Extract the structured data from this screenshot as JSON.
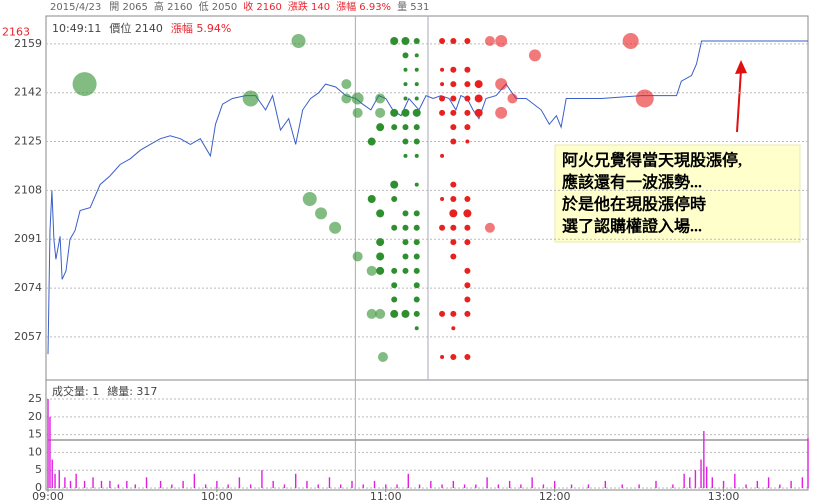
{
  "header": {
    "items": [
      "2015/4/23",
      "開 2065",
      "高 2160",
      "低 2050",
      "收 2160",
      "漲跌 140",
      "漲幅 6.93%",
      "量 531"
    ]
  },
  "annotation": {
    "lines": [
      "阿火兄覺得當天現股漲停,",
      "應該還有一波漲勢...",
      "於是他在現股漲停時",
      "選了認購權證入場..."
    ]
  },
  "chart_data": [
    {
      "type": "line",
      "info": [
        "10:49:11",
        "價位 2140",
        "漲幅 5.94%"
      ],
      "ymax_label": 2163,
      "xlim": [
        0,
        270
      ],
      "ylim": [
        2042,
        2168.7
      ],
      "yticks": [
        2159,
        2142,
        2125,
        2108,
        2091,
        2074,
        2057
      ],
      "grid": true,
      "markers_x": [
        109.2,
        135
      ],
      "series": [
        {
          "type": "line",
          "color": "#3a5fc8",
          "x": [
            0,
            0.7,
            1.4,
            2.1,
            2.8,
            4.3,
            5,
            6.4,
            7.8,
            9.6,
            11.4,
            15,
            18.5,
            22,
            25.6,
            29.2,
            32.8,
            36.3,
            39.9,
            43.4,
            47,
            50.6,
            54.1,
            57.7,
            59.5,
            62,
            65.5,
            70.2,
            73.7,
            77.3,
            79.8,
            82.6,
            85.5,
            88,
            90.5,
            93.3,
            96.2,
            98.6,
            102.2,
            105.8,
            109.3,
            111.8,
            114.7,
            117.5,
            120,
            122.5,
            125.4,
            128.2,
            131.8,
            134.3,
            136.8,
            139.6,
            142.5,
            144.9,
            146.7,
            148.9,
            151,
            153.1,
            155.6,
            159.2,
            162.7,
            166.3,
            169.9,
            175.2,
            178.1,
            180.6,
            182.3,
            184.1,
            196.6,
            210.8,
            223.3,
            225,
            228.6,
            230.4,
            232.2,
            270
          ],
          "values": [
            2051,
            2094,
            2108,
            2091,
            2084,
            2092,
            2077,
            2080,
            2091,
            2094,
            2101,
            2102,
            2110,
            2113,
            2117,
            2119,
            2122,
            2124,
            2126,
            2127,
            2126,
            2124,
            2126,
            2120,
            2131,
            2138,
            2140,
            2141,
            2141,
            2136,
            2141,
            2129,
            2133,
            2124,
            2136,
            2140,
            2142,
            2145,
            2144,
            2141,
            2140,
            2138,
            2136,
            2141,
            2140,
            2136,
            2134,
            2140,
            2136,
            2141,
            2140,
            2141,
            2140,
            2136,
            2141,
            2140,
            2136,
            2133,
            2140,
            2141,
            2145,
            2140,
            2140,
            2136,
            2131,
            2134,
            2130,
            2140,
            2140,
            2141,
            2141,
            2146,
            2148,
            2152,
            2160,
            2160
          ]
        },
        {
          "type": "scatter",
          "color": "#2e8f2e",
          "x": [
            89,
            13,
            72,
            106,
            106,
            110,
            110,
            115,
            118,
            118,
            118,
            93,
            97,
            102,
            110,
            115,
            115,
            118,
            118,
            118,
            118,
            115,
            118,
            123,
            123,
            123,
            123,
            123,
            123,
            123,
            123,
            123,
            123,
            127,
            131,
            127,
            131,
            127,
            131,
            127,
            131,
            127,
            131,
            127,
            131,
            127,
            131,
            127,
            131,
            127,
            131,
            131,
            127,
            131,
            127,
            131,
            127,
            131,
            127,
            131,
            127,
            131,
            131,
            131,
            127,
            131,
            131,
            119
          ],
          "values": [
            2160,
            2145,
            2140,
            2145,
            2140,
            2140,
            2135,
            2125,
            2140,
            2135,
            2130,
            2105,
            2100,
            2095,
            2085,
            2105,
            2080,
            2080,
            2090,
            2085,
            2100,
            2065,
            2065,
            2065,
            2070,
            2075,
            2080,
            2095,
            2110,
            2105,
            2135,
            2130,
            2160,
            2160,
            2160,
            2155,
            2155,
            2150,
            2150,
            2145,
            2145,
            2140,
            2140,
            2135,
            2135,
            2130,
            2130,
            2125,
            2125,
            2120,
            2120,
            2110,
            2100,
            2100,
            2095,
            2095,
            2090,
            2090,
            2085,
            2085,
            2080,
            2080,
            2075,
            2070,
            2065,
            2065,
            2060,
            2050
          ],
          "sizes": [
            7,
            12,
            8,
            5,
            5,
            6,
            5,
            4,
            5,
            5,
            4,
            7,
            6,
            6,
            5,
            4,
            5,
            4,
            4,
            4,
            4,
            5,
            5,
            4,
            3,
            3,
            3,
            3,
            4,
            3,
            4,
            3,
            4,
            4,
            3,
            3,
            2,
            2,
            2,
            2,
            2,
            2,
            2,
            4,
            4,
            3,
            3,
            3,
            3,
            2,
            2,
            2,
            3,
            3,
            3,
            3,
            3,
            3,
            3,
            3,
            3,
            3,
            3,
            3,
            4,
            3,
            2,
            5
          ]
        },
        {
          "type": "scatter",
          "color": "#e82020",
          "x": [
            140,
            144,
            149,
            157,
            161,
            207,
            173,
            140,
            144,
            149,
            140,
            144,
            149,
            153,
            161,
            140,
            144,
            149,
            153,
            165,
            212,
            140,
            144,
            149,
            153,
            161,
            144,
            149,
            144,
            149,
            140,
            144,
            140,
            144,
            149,
            144,
            149,
            157,
            140,
            144,
            149,
            144,
            149,
            144,
            149,
            149,
            149,
            140,
            144,
            149,
            140,
            144,
            149,
            144
          ],
          "values": [
            2160,
            2160,
            2160,
            2160,
            2160,
            2160,
            2155,
            2150,
            2150,
            2150,
            2145,
            2145,
            2145,
            2145,
            2145,
            2140,
            2140,
            2140,
            2140,
            2140,
            2140,
            2135,
            2135,
            2135,
            2135,
            2135,
            2130,
            2130,
            2125,
            2125,
            2120,
            2110,
            2105,
            2105,
            2105,
            2100,
            2100,
            2095,
            2095,
            2095,
            2095,
            2090,
            2090,
            2085,
            2080,
            2075,
            2070,
            2065,
            2065,
            2065,
            2050,
            2050,
            2050,
            2060
          ],
          "sizes": [
            3,
            3,
            3,
            5,
            6,
            8,
            6,
            2,
            3,
            3,
            2,
            3,
            3,
            4,
            6,
            3,
            3,
            3,
            4,
            5,
            9,
            3,
            3,
            3,
            4,
            6,
            3,
            3,
            3,
            2,
            2,
            3,
            2,
            3,
            3,
            4,
            4,
            5,
            3,
            3,
            3,
            3,
            3,
            3,
            3,
            3,
            3,
            3,
            3,
            3,
            2,
            3,
            3,
            2
          ]
        }
      ]
    },
    {
      "type": "bar",
      "info": [
        "成交量: 1",
        "總量: 317"
      ],
      "xlim": [
        0,
        270
      ],
      "ylim": [
        0,
        29.5
      ],
      "yticks": [
        0,
        5,
        10,
        15,
        20,
        25
      ],
      "grid": true,
      "xticks": [
        {
          "value": 0,
          "label": "09:00"
        },
        {
          "value": 60,
          "label": "10:00"
        },
        {
          "value": 120,
          "label": "11:00"
        },
        {
          "value": 180,
          "label": "12:00"
        },
        {
          "value": 240,
          "label": "13:00"
        }
      ],
      "reference_line": 13.5,
      "color": "#e020e0",
      "x": [
        0,
        0.7,
        1.5,
        2.5,
        4,
        6,
        8,
        10,
        13,
        16,
        19,
        22,
        25,
        28,
        31,
        35,
        40,
        44,
        48,
        52,
        56,
        60,
        64,
        68,
        72,
        76,
        80,
        84,
        88,
        92,
        96,
        100,
        104,
        108,
        112,
        116,
        120,
        124,
        128,
        132,
        136,
        140,
        144,
        148,
        152,
        156,
        160,
        164,
        168,
        172,
        176,
        180,
        186,
        192,
        198,
        204,
        210,
        216,
        222,
        226,
        228,
        230,
        232,
        233,
        234,
        236,
        240,
        244,
        248,
        252,
        256,
        260,
        264,
        268,
        270
      ],
      "values": [
        25,
        20,
        8,
        4,
        5,
        3,
        2,
        4,
        2,
        3,
        2,
        2,
        1,
        2,
        1,
        3,
        2,
        1,
        2,
        4,
        1,
        2,
        1,
        3,
        1,
        5,
        2,
        1,
        4,
        2,
        1,
        3,
        1,
        2,
        1,
        2,
        1,
        1,
        4,
        1,
        2,
        1,
        2,
        1,
        1,
        3,
        1,
        2,
        1,
        3,
        1,
        2,
        1,
        1,
        2,
        1,
        1,
        2,
        1,
        4,
        3,
        5,
        8,
        16,
        6,
        3,
        2,
        4,
        1,
        2,
        3,
        1,
        2,
        3,
        14
      ]
    }
  ]
}
